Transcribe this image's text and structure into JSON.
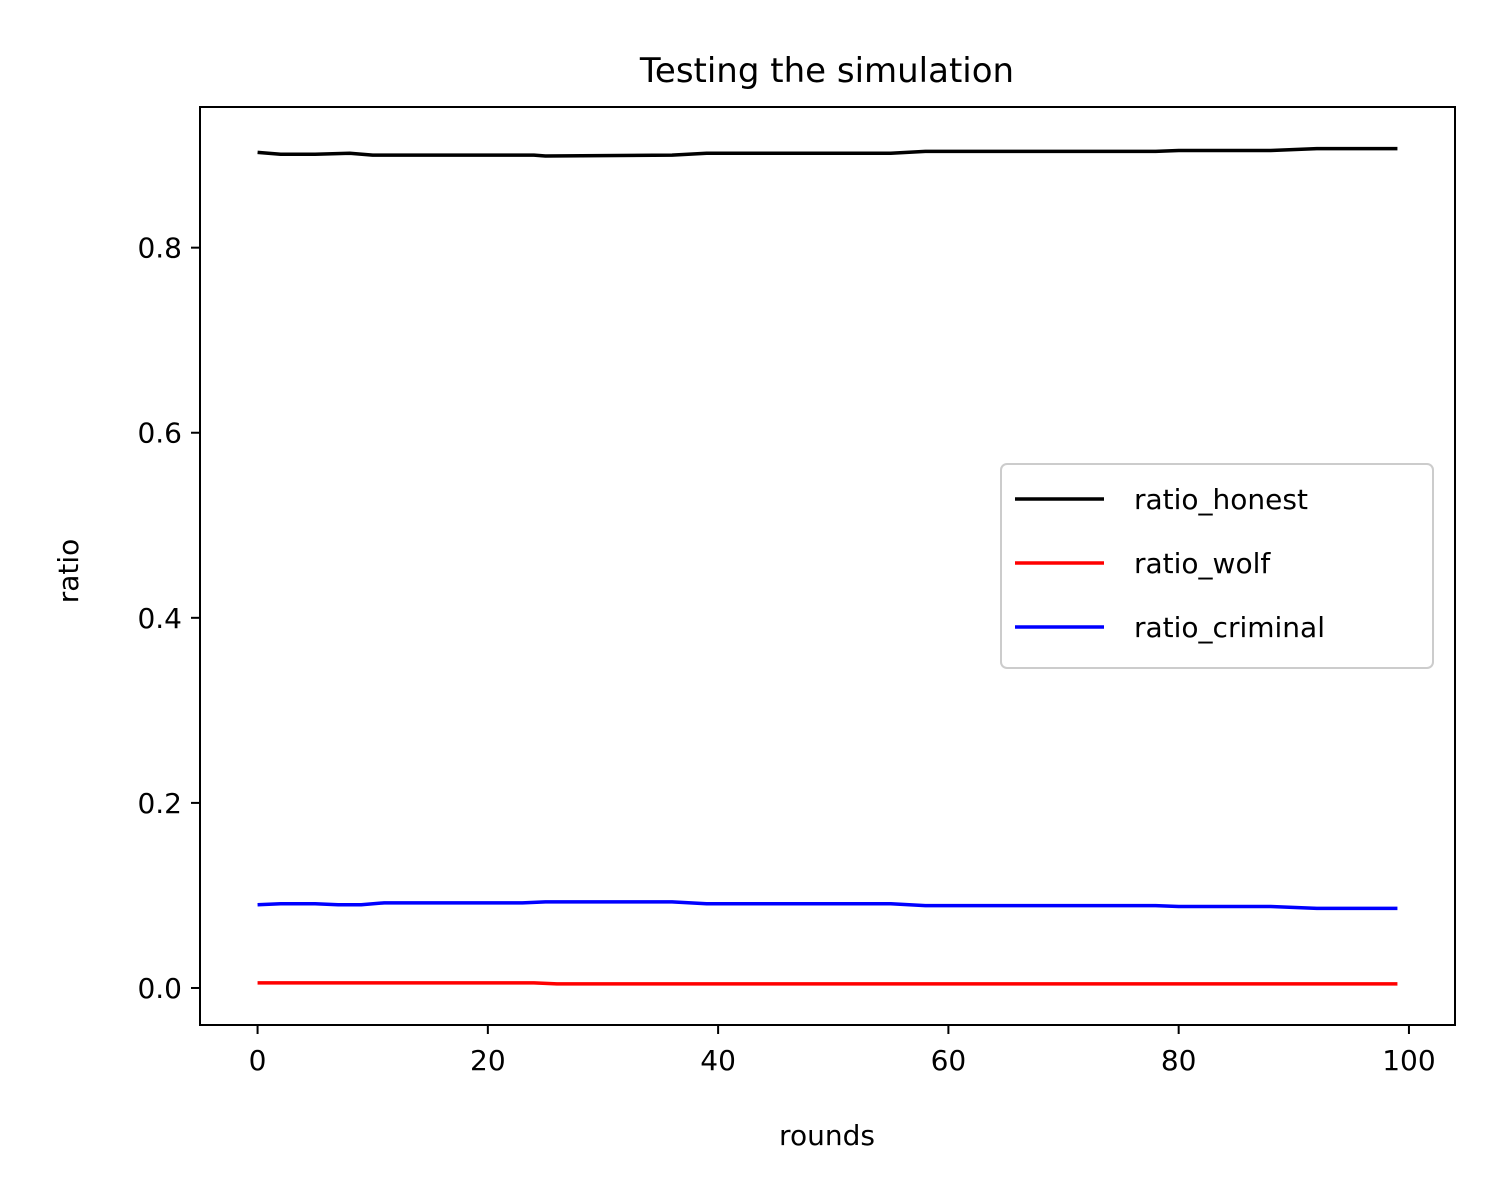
{
  "chart_data": {
    "type": "line",
    "title": "Testing the simulation",
    "xlabel": "rounds",
    "ylabel": "ratio",
    "xlim": [
      -5,
      104
    ],
    "ylim": [
      -0.04,
      0.952
    ],
    "xticks": [
      0,
      20,
      40,
      60,
      80,
      100
    ],
    "yticks": [
      0.0,
      0.2,
      0.4,
      0.6,
      0.8
    ],
    "xtick_labels": [
      "0",
      "20",
      "40",
      "60",
      "80",
      "100"
    ],
    "ytick_labels": [
      "0.0",
      "0.2",
      "0.4",
      "0.6",
      "0.8"
    ],
    "grid": false,
    "legend_position": "center-right",
    "series": [
      {
        "name": "ratio_honest",
        "color": "#000000",
        "x": [
          0,
          2,
          5,
          8,
          10,
          24,
          25,
          36,
          39,
          55,
          58,
          78,
          80,
          88,
          92,
          99
        ],
        "y": [
          0.903,
          0.901,
          0.901,
          0.902,
          0.9,
          0.9,
          0.899,
          0.9,
          0.902,
          0.902,
          0.904,
          0.904,
          0.905,
          0.905,
          0.907,
          0.907
        ]
      },
      {
        "name": "ratio_wolf",
        "color": "#ff0000",
        "x": [
          0,
          24,
          26,
          99
        ],
        "y": [
          0.0055,
          0.0055,
          0.0045,
          0.0045
        ]
      },
      {
        "name": "ratio_criminal",
        "color": "#0000ff",
        "x": [
          0,
          2,
          5,
          7,
          9,
          11,
          23,
          25,
          36,
          39,
          55,
          58,
          78,
          80,
          88,
          92,
          99
        ],
        "y": [
          0.09,
          0.091,
          0.091,
          0.09,
          0.09,
          0.092,
          0.092,
          0.093,
          0.093,
          0.091,
          0.091,
          0.089,
          0.089,
          0.088,
          0.088,
          0.086,
          0.086
        ]
      }
    ]
  }
}
